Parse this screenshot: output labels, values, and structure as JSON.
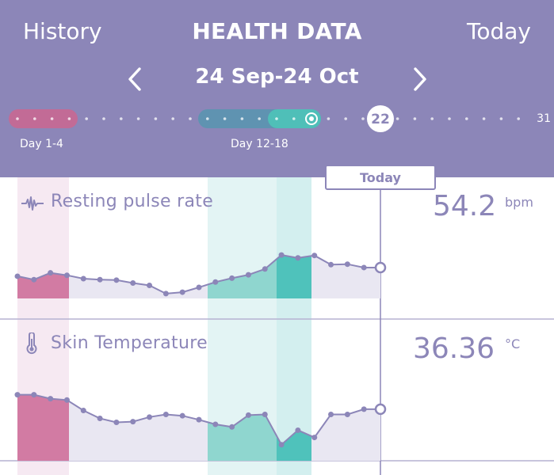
{
  "nav": {
    "left_label": "History",
    "title": "HEALTH DATA",
    "right_label": "Today"
  },
  "period": {
    "range_label": "24 Sep-24 Oct"
  },
  "timeline": {
    "current_day": "22",
    "end_day": "31",
    "period_label": "Day 1-4",
    "fertile_label": "Day 12-18",
    "today_label": "Today"
  },
  "metrics": [
    {
      "name": "Resting pulse rate",
      "icon": "pulse-icon",
      "value": "54.2",
      "unit": "bpm",
      "points": [
        0.46,
        0.39,
        0.53,
        0.48,
        0.41,
        0.39,
        0.38,
        0.32,
        0.27,
        0.1,
        0.13,
        0.23,
        0.34,
        0.42,
        0.49,
        0.61,
        0.9,
        0.84,
        0.89,
        0.7,
        0.71,
        0.64,
        0.64
      ]
    },
    {
      "name": "Skin Temperature",
      "icon": "thermometer-icon",
      "value": "36.36",
      "unit": "°C",
      "points": [
        0.86,
        0.86,
        0.8,
        0.78,
        0.62,
        0.5,
        0.44,
        0.45,
        0.52,
        0.56,
        0.54,
        0.48,
        0.41,
        0.37,
        0.55,
        0.56,
        0.1,
        0.32,
        0.21,
        0.56,
        0.56,
        0.64,
        0.64
      ]
    }
  ],
  "colors": {
    "header": "#8c86b8",
    "period": "#c26b96",
    "fertile": "#4fbfb8",
    "line": "#8c86b8"
  }
}
